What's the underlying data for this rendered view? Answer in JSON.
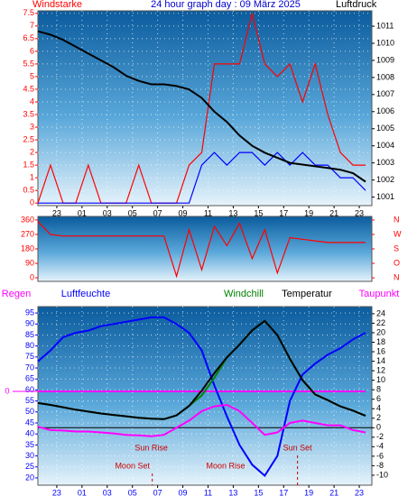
{
  "chart_data": [
    {
      "type": "line",
      "title": "24 hour graph day : 09 März 2025",
      "x": [
        0,
        1,
        2,
        3,
        4,
        5,
        6,
        7,
        8,
        9,
        10,
        11,
        12,
        13,
        14,
        15,
        16,
        17,
        18,
        19,
        20,
        21,
        22,
        23,
        24,
        25,
        26
      ],
      "xlim": [
        0,
        26.5
      ],
      "xticks": [
        {
          "value": 1.5,
          "label": "23"
        },
        {
          "value": 3.5,
          "label": "01"
        },
        {
          "value": 5.5,
          "label": "03"
        },
        {
          "value": 7.5,
          "label": "05"
        },
        {
          "value": 9.5,
          "label": "07"
        },
        {
          "value": 11.5,
          "label": "09"
        },
        {
          "value": 13.5,
          "label": "11"
        },
        {
          "value": 15.5,
          "label": "13"
        },
        {
          "value": 17.5,
          "label": "15"
        },
        {
          "value": 19.5,
          "label": "17"
        },
        {
          "value": 21.5,
          "label": "19"
        },
        {
          "value": 23.5,
          "label": "21"
        },
        {
          "value": 25.5,
          "label": "23"
        }
      ],
      "ylim": [
        -0.1,
        7.6
      ],
      "yticks": [
        0,
        0.5,
        1,
        1.5,
        2,
        2.5,
        3,
        3.5,
        4,
        4.5,
        5,
        5.5,
        6,
        6.5,
        7,
        7.5
      ],
      "y2lim": [
        1000.5,
        1011.9
      ],
      "y2ticks": [
        1001,
        1002,
        1003,
        1004,
        1005,
        1006,
        1007,
        1008,
        1009,
        1010,
        1011
      ],
      "grid": true,
      "series": [
        {
          "name": "Windstarke",
          "color": "#ff0000",
          "values": [
            0,
            1.5,
            0,
            0,
            1.5,
            0,
            0,
            0,
            1.5,
            0,
            0,
            0,
            1.5,
            2,
            5.5,
            5.5,
            5.5,
            7.5,
            5.5,
            5,
            5.5,
            4,
            5.5,
            3.5,
            2,
            1.5,
            1.5
          ]
        },
        {
          "color": "#0000ff",
          "values": [
            0,
            0,
            0,
            0,
            0,
            0,
            0,
            0,
            0,
            0,
            0,
            0,
            0,
            1.5,
            2,
            1.5,
            2,
            2,
            1.5,
            2,
            1.5,
            2,
            1.5,
            1.5,
            1,
            1,
            0.5
          ]
        },
        {
          "name": "Luftdruck",
          "color": "#000000",
          "axis": "y2",
          "values": [
            1010.7,
            1010.5,
            1010.2,
            1009.8,
            1009.4,
            1009.0,
            1008.6,
            1008.1,
            1007.8,
            1007.6,
            1007.6,
            1007.5,
            1007.3,
            1006.8,
            1006.0,
            1005.4,
            1004.6,
            1004.0,
            1003.6,
            1003.3,
            1003.0,
            1002.9,
            1002.8,
            1002.7,
            1002.6,
            1002.4,
            1001.9
          ]
        }
      ]
    },
    {
      "type": "line",
      "x": [
        0,
        1,
        2,
        3,
        4,
        5,
        6,
        7,
        8,
        9,
        10,
        11,
        12,
        13,
        14,
        15,
        16,
        17,
        18,
        19,
        20,
        21,
        22,
        23,
        24,
        25,
        26
      ],
      "xlim": [
        0,
        26.5
      ],
      "ylim": [
        -22,
        382
      ],
      "yticks": [
        0,
        90,
        180,
        270,
        360
      ],
      "y2lim": [
        -22,
        382
      ],
      "y2ticks": [
        {
          "value": 360,
          "label": "N"
        },
        {
          "value": 270,
          "label": "W"
        },
        {
          "value": 180,
          "label": "S"
        },
        {
          "value": 90,
          "label": "O"
        },
        {
          "value": 0,
          "label": "N"
        }
      ],
      "series": [
        {
          "color": "#ff0000",
          "values": [
            350,
            270,
            260,
            260,
            260,
            260,
            260,
            260,
            260,
            260,
            260,
            10,
            300,
            50,
            320,
            200,
            340,
            120,
            300,
            30,
            250,
            240,
            230,
            220,
            220,
            220,
            220
          ]
        }
      ]
    },
    {
      "type": "line",
      "x": [
        0,
        1,
        2,
        3,
        4,
        5,
        6,
        7,
        8,
        9,
        10,
        11,
        12,
        13,
        14,
        15,
        16,
        17,
        18,
        19,
        20,
        21,
        22,
        23,
        24,
        25,
        26
      ],
      "xlim": [
        0,
        26.5
      ],
      "xticks": [
        {
          "value": 1.5,
          "label": "23"
        },
        {
          "value": 3.5,
          "label": "01"
        },
        {
          "value": 5.5,
          "label": "03"
        },
        {
          "value": 7.5,
          "label": "05"
        },
        {
          "value": 9.5,
          "label": "07"
        },
        {
          "value": 11.5,
          "label": "09"
        },
        {
          "value": 13.5,
          "label": "11"
        },
        {
          "value": 15.5,
          "label": "13"
        },
        {
          "value": 17.5,
          "label": "15"
        },
        {
          "value": 19.5,
          "label": "17"
        },
        {
          "value": 21.5,
          "label": "19"
        },
        {
          "value": 23.5,
          "label": "21"
        },
        {
          "value": 25.5,
          "label": "23"
        }
      ],
      "ylim": [
        16.7,
        97.9
      ],
      "yticks": [
        20,
        25,
        30,
        35,
        40,
        45,
        50,
        55,
        60,
        65,
        70,
        75,
        80,
        85,
        90,
        95
      ],
      "y2lim": [
        -12.1,
        25.5
      ],
      "y2ticks": [
        -10,
        -8,
        -6,
        -4,
        -2,
        0,
        2,
        4,
        6,
        8,
        10,
        12,
        14,
        16,
        18,
        20,
        22,
        24
      ],
      "y3lim": [
        -10.4,
        9.4
      ],
      "y3ticks": [
        0
      ],
      "grid": true,
      "series": [
        {
          "name": "Regen",
          "color": "#ff00ff",
          "axis": "y3",
          "values": [
            0,
            0,
            0,
            0,
            0,
            0,
            0,
            0,
            0,
            0,
            0,
            0,
            0,
            0,
            0,
            0,
            0,
            0,
            0,
            0,
            0,
            0,
            0,
            0,
            0,
            0,
            0
          ]
        },
        {
          "name": "Luftfeuchte",
          "color": "#0000ff",
          "values": [
            73,
            78,
            84,
            86,
            87,
            89,
            90,
            91,
            92,
            93,
            93,
            90,
            86,
            78,
            62,
            48,
            35,
            26,
            21,
            30,
            55,
            67,
            72,
            76,
            79,
            83,
            86
          ]
        },
        {
          "name": "Windchill",
          "color": "#008000",
          "axis": "y2",
          "values": [
            5.2,
            4.8,
            4.3,
            3.8,
            3.4,
            3.0,
            2.7,
            2.4,
            2.1,
            1.9,
            1.8,
            2.6,
            4.6,
            6.8,
            10.5,
            14.8,
            17.5,
            20.5,
            22.5,
            19.5,
            14.5,
            10,
            7,
            5.8,
            4.5,
            3.6,
            2.5
          ]
        },
        {
          "name": "Temperatur",
          "color": "#000000",
          "axis": "y2",
          "values": [
            5.2,
            4.8,
            4.3,
            3.8,
            3.4,
            3.0,
            2.7,
            2.4,
            2.1,
            1.9,
            1.8,
            2.6,
            4.6,
            7.8,
            11.5,
            14.8,
            17.5,
            20.5,
            22.5,
            19.5,
            14.5,
            10,
            7,
            5.8,
            4.5,
            3.6,
            2.5
          ]
        },
        {
          "name": "Taupunkt",
          "color": "#ff00ff",
          "axis": "y2",
          "values": [
            0.2,
            -0.5,
            -0.6,
            -0.8,
            -0.8,
            -1.0,
            -1.2,
            -1.5,
            -1.6,
            -1.8,
            -1.5,
            0,
            1.5,
            3.5,
            4.5,
            4.8,
            3.5,
            1.0,
            -1.5,
            -1.0,
            1,
            1.5,
            1,
            0.5,
            0.5,
            -0.5,
            -1.0
          ]
        }
      ],
      "annotations": [
        {
          "text": "Sun Rise",
          "x": 9.0
        },
        {
          "text": "Sun Set",
          "x": 20.6
        },
        {
          "text": "Moon Set",
          "x": 7.5
        },
        {
          "text": "Moon Rise",
          "x": 14.9
        }
      ]
    }
  ]
}
